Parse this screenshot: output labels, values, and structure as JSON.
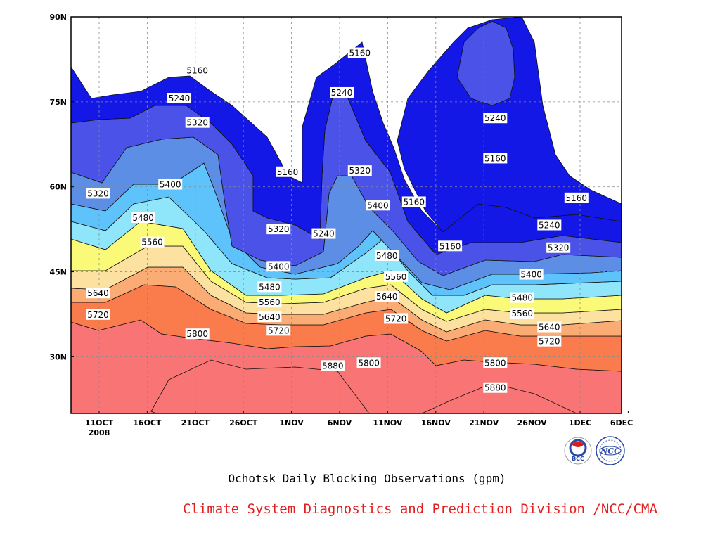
{
  "chart_data": {
    "type": "heatmap",
    "title": "Ochotsk Daily Blocking Observations (gpm)",
    "x_ticks": [
      "11OCT",
      "16OCT",
      "21OCT",
      "26OCT",
      "1NOV",
      "6NOV",
      "11NOV",
      "16NOV",
      "21NOV",
      "26NOV",
      "1DEC",
      "6DEC"
    ],
    "x_year_label": "2008",
    "y_ticks": [
      "30N",
      "45N",
      "60N",
      "75N",
      "90N"
    ],
    "xlim": [
      "2008-10-06",
      "2008-12-06"
    ],
    "ylim": [
      20,
      90
    ],
    "grid": true,
    "contour_levels": [
      5160,
      5240,
      5320,
      5400,
      5480,
      5560,
      5640,
      5720,
      5800,
      5880
    ],
    "level_colors": [
      "#0e0f6e",
      "#1418e6",
      "#4a52e8",
      "#5c8ee6",
      "#5fc3fb",
      "#8fe6fa",
      "#fbfa78",
      "#fce1a0",
      "#fbac74",
      "#fa7c4c",
      "#f97474",
      "#f23a4a"
    ],
    "contour_labels": [
      {
        "value": "5160",
        "lon_date": "2008-10-20",
        "lat": 80.5
      },
      {
        "value": "5240",
        "lon_date": "2008-10-18",
        "lat": 75.6
      },
      {
        "value": "5320",
        "lon_date": "2008-10-20",
        "lat": 71.3
      },
      {
        "value": "5400",
        "lon_date": "2008-10-17",
        "lat": 60.4
      },
      {
        "value": "5320",
        "lon_date": "2008-10-09",
        "lat": 58.8
      },
      {
        "value": "5480",
        "lon_date": "2008-10-14",
        "lat": 54.5
      },
      {
        "value": "5560",
        "lon_date": "2008-10-15",
        "lat": 50.2
      },
      {
        "value": "5640",
        "lon_date": "2008-10-09",
        "lat": 41.2
      },
      {
        "value": "5720",
        "lon_date": "2008-10-09",
        "lat": 37.4
      },
      {
        "value": "5800",
        "lon_date": "2008-10-20",
        "lat": 34.0
      },
      {
        "value": "5160",
        "lon_date": "2008-10-30",
        "lat": 62.6
      },
      {
        "value": "5320",
        "lon_date": "2008-10-29",
        "lat": 52.5
      },
      {
        "value": "5240",
        "lon_date": "2008-11-03",
        "lat": 51.7
      },
      {
        "value": "5400",
        "lon_date": "2008-10-29",
        "lat": 45.9
      },
      {
        "value": "5480",
        "lon_date": "2008-10-28",
        "lat": 42.3
      },
      {
        "value": "5560",
        "lon_date": "2008-10-28",
        "lat": 39.6
      },
      {
        "value": "5640",
        "lon_date": "2008-10-28",
        "lat": 37.0
      },
      {
        "value": "5720",
        "lon_date": "2008-10-29",
        "lat": 34.6
      },
      {
        "value": "5160",
        "lon_date": "2008-11-07",
        "lat": 83.6
      },
      {
        "value": "5240",
        "lon_date": "2008-11-05",
        "lat": 76.6
      },
      {
        "value": "5320",
        "lon_date": "2008-11-07",
        "lat": 62.8
      },
      {
        "value": "5400",
        "lon_date": "2008-11-09",
        "lat": 56.7
      },
      {
        "value": "5480",
        "lon_date": "2008-11-10",
        "lat": 47.8
      },
      {
        "value": "5560",
        "lon_date": "2008-11-11",
        "lat": 44.1
      },
      {
        "value": "5640",
        "lon_date": "2008-11-10",
        "lat": 40.6
      },
      {
        "value": "5720",
        "lon_date": "2008-11-11",
        "lat": 36.7
      },
      {
        "value": "5880",
        "lon_date": "2008-11-04",
        "lat": 28.4
      },
      {
        "value": "5800",
        "lon_date": "2008-11-08",
        "lat": 28.9
      },
      {
        "value": "5160",
        "lon_date": "2008-11-13",
        "lat": 57.3
      },
      {
        "value": "5160",
        "lon_date": "2008-11-17",
        "lat": 49.5
      },
      {
        "value": "5240",
        "lon_date": "2008-11-22",
        "lat": 72.1
      },
      {
        "value": "5160",
        "lon_date": "2008-11-22",
        "lat": 65.0
      },
      {
        "value": "5160",
        "lon_date": "2008-12-01",
        "lat": 58.0
      },
      {
        "value": "5240",
        "lon_date": "2008-11-28",
        "lat": 53.2
      },
      {
        "value": "5320",
        "lon_date": "2008-11-29",
        "lat": 49.2
      },
      {
        "value": "5400",
        "lon_date": "2008-11-26",
        "lat": 44.5
      },
      {
        "value": "5480",
        "lon_date": "2008-11-25",
        "lat": 40.4
      },
      {
        "value": "5560",
        "lon_date": "2008-11-25",
        "lat": 37.6
      },
      {
        "value": "5640",
        "lon_date": "2008-11-28",
        "lat": 35.2
      },
      {
        "value": "5720",
        "lon_date": "2008-11-28",
        "lat": 32.7
      },
      {
        "value": "5800",
        "lon_date": "2008-11-22",
        "lat": 28.9
      },
      {
        "value": "5880",
        "lon_date": "2008-11-22",
        "lat": 24.5
      }
    ]
  },
  "logos": [
    "BCC",
    "NCC"
  ],
  "credit": {
    "text": "Climate System Diagnostics and Prediction Division /NCC/CMA",
    "color": "#e02020"
  }
}
